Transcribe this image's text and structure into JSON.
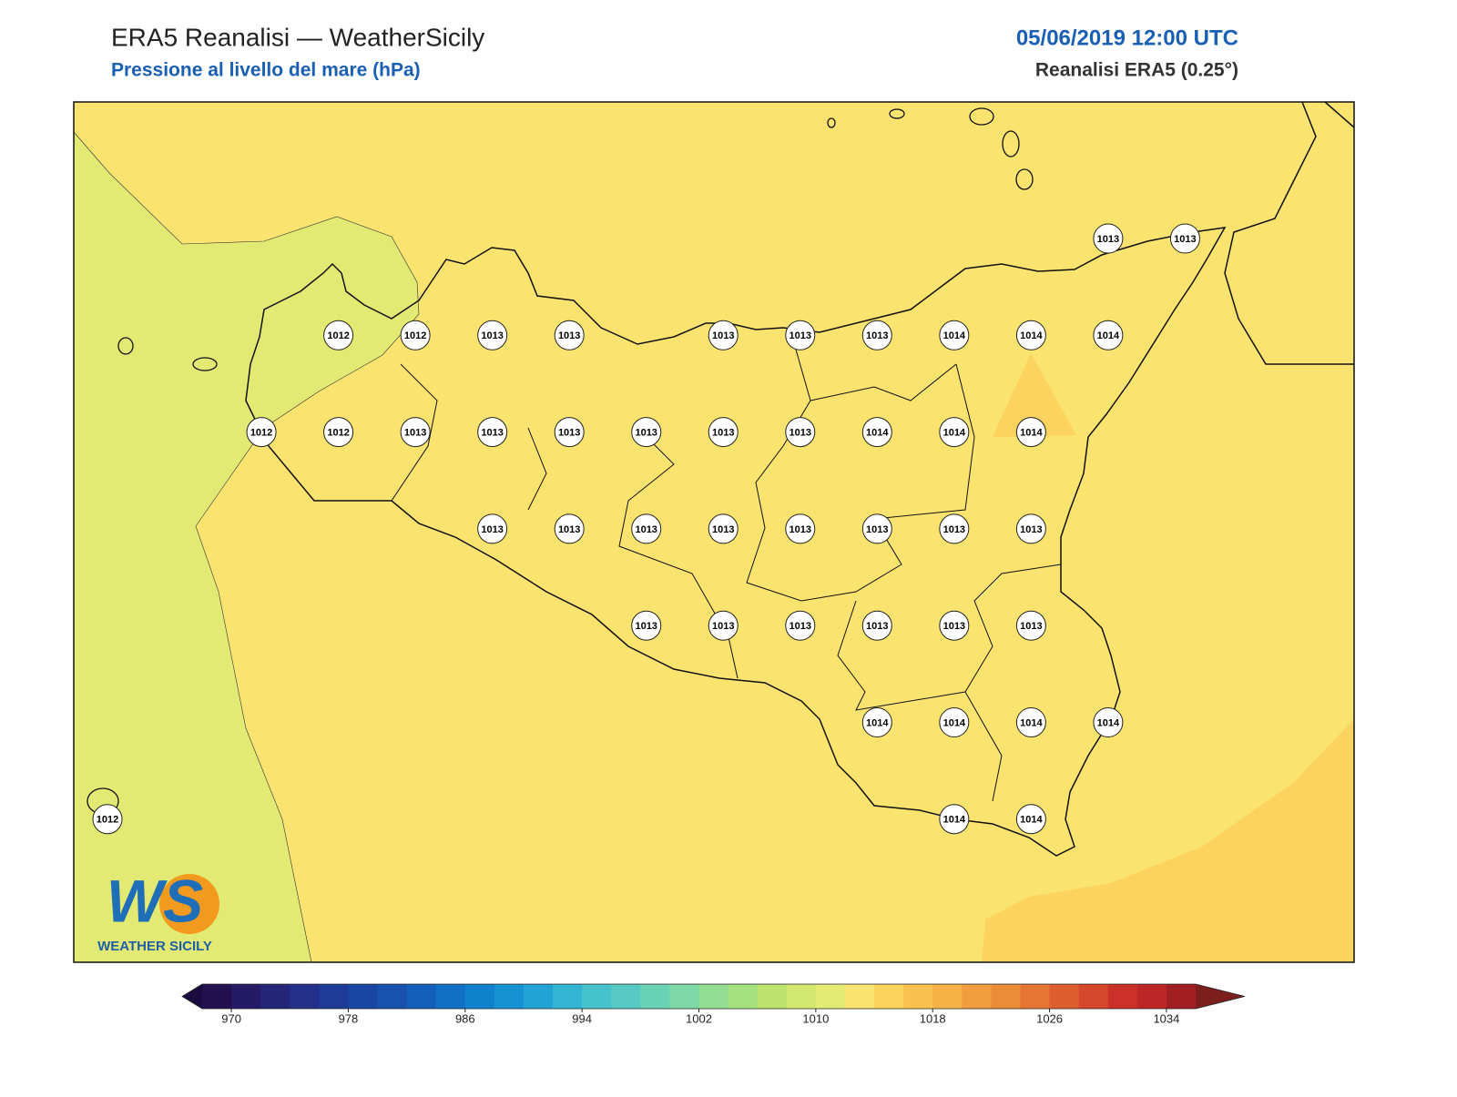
{
  "header": {
    "title": "ERA5 Reanalisi — WeatherSicily",
    "subtitle": "Pressione al livello del mare (hPa)",
    "date": "05/06/2019 12:00 UTC",
    "source": "Reanalisi ERA5 (0.25°)"
  },
  "map": {
    "stations": [
      1013,
      1013,
      1012,
      1012,
      1013,
      1013,
      1013,
      1013,
      1013,
      1014,
      1014,
      1014,
      1012,
      1012,
      1013,
      1013,
      1013,
      1013,
      1013,
      1013,
      1014,
      1014,
      1014,
      1013,
      1013,
      1013,
      1013,
      1013,
      1013,
      1013,
      1013,
      1013,
      1013,
      1013,
      1013,
      1013,
      1013,
      1014,
      1014,
      1014,
      1014,
      1012,
      1014,
      1014
    ]
  },
  "logo": {
    "mark": "WS",
    "name": "WEATHER SICILY"
  },
  "colorbar": {
    "range": [
      968,
      1036
    ],
    "ticks": [
      970,
      978,
      986,
      994,
      1002,
      1010,
      1018,
      1026,
      1034
    ],
    "colors": [
      "#23104f",
      "#251a66",
      "#252577",
      "#22308a",
      "#1d3b97",
      "#1a46a3",
      "#1752ae",
      "#145fb9",
      "#1170c4",
      "#1081cc",
      "#1592d2",
      "#22a3d5",
      "#34b4d3",
      "#45c2cc",
      "#57cbc3",
      "#6ad3b6",
      "#7fd9a6",
      "#93dd94",
      "#a5e17f",
      "#bce46c",
      "#d2e86e",
      "#e4eb75",
      "#fbe36f",
      "#fcd35d",
      "#f9c250",
      "#f5b145",
      "#f09e3f",
      "#ec8c39",
      "#e67534",
      "#df5e2f",
      "#d7472c",
      "#cc3129",
      "#bd2626",
      "#a11f22"
    ],
    "under": "#1a0c3e",
    "over": "#7c1e1c"
  }
}
